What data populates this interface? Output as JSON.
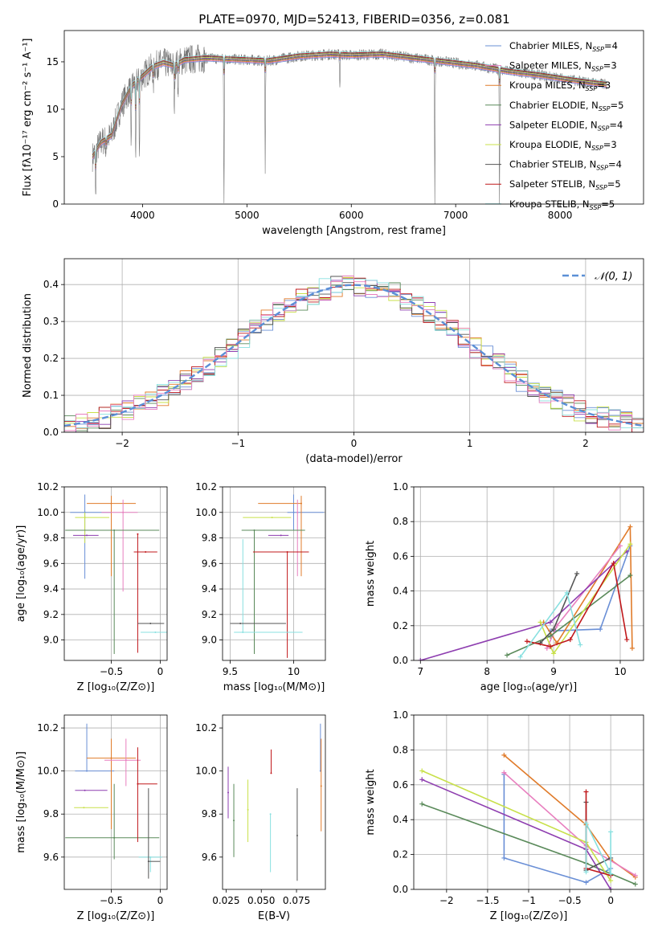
{
  "figure_title": "PLATE=0970, MJD=52413, FIBERID=0356, z=0.081",
  "colors": {
    "c1": "#6a8fd6",
    "c2": "#e07b2a",
    "c3": "#5a8a5a",
    "c4": "#8e3eb0",
    "c5": "#c8e04a",
    "c6": "#555555",
    "c7": "#c0181b",
    "c8": "#88e0e0",
    "c9": "#e87fbf",
    "normal": "#5b8fd6"
  },
  "chart_data": [
    {
      "id": "spectrum",
      "type": "line",
      "xlabel": "wavelength [Angstrom, rest frame]",
      "ylabel": "Flux [fλ10⁻¹⁷ erg cm⁻² s⁻¹ A⁻¹]",
      "xlim": [
        3250,
        8800
      ],
      "ylim": [
        0,
        18.3
      ],
      "xticks": [
        4000,
        5000,
        6000,
        7000,
        8000
      ],
      "yticks": [
        0,
        5,
        10,
        15
      ],
      "grid": false,
      "legend_position": "right",
      "legend": [
        {
          "label": "Chabrier MILES, N",
          "sub": "SSP",
          "suffix": "=4",
          "color": "c1"
        },
        {
          "label": "Salpeter MILES, N",
          "sub": "SSP",
          "suffix": "=3",
          "color": "c9"
        },
        {
          "label": "Kroupa MILES, N",
          "sub": "SSP",
          "suffix": "=3",
          "color": "c2"
        },
        {
          "label": "Chabrier ELODIE, N",
          "sub": "SSP",
          "suffix": "=5",
          "color": "c3"
        },
        {
          "label": "Salpeter ELODIE, N",
          "sub": "SSP",
          "suffix": "=4",
          "color": "c4"
        },
        {
          "label": "Kroupa ELODIE, N",
          "sub": "SSP",
          "suffix": "=3",
          "color": "c5"
        },
        {
          "label": "Chabrier STELIB, N",
          "sub": "SSP",
          "suffix": "=4",
          "color": "c6"
        },
        {
          "label": "Salpeter STELIB, N",
          "sub": "SSP",
          "suffix": "=5",
          "color": "c7"
        },
        {
          "label": "Kroupa STELIB, N",
          "sub": "SSP",
          "suffix": "=5",
          "color": "c8"
        }
      ],
      "continuum": [
        [
          3520,
          5.0
        ],
        [
          3600,
          6.5
        ],
        [
          3700,
          7.2
        ],
        [
          3800,
          10.5
        ],
        [
          3900,
          12.5
        ],
        [
          4000,
          13.5
        ],
        [
          4100,
          14.5
        ],
        [
          4200,
          14.9
        ],
        [
          4300,
          14.6
        ],
        [
          4400,
          15.2
        ],
        [
          4600,
          15.4
        ],
        [
          4800,
          15.3
        ],
        [
          5000,
          15.2
        ],
        [
          5200,
          15.1
        ],
        [
          5500,
          15.6
        ],
        [
          5800,
          15.8
        ],
        [
          6000,
          15.7
        ],
        [
          6300,
          15.8
        ],
        [
          6600,
          15.4
        ],
        [
          6900,
          15.0
        ],
        [
          7200,
          14.6
        ],
        [
          7500,
          14.0
        ],
        [
          7800,
          13.6
        ],
        [
          8100,
          13.1
        ],
        [
          8300,
          12.8
        ],
        [
          8450,
          12.6
        ]
      ],
      "absorption_lines": [
        {
          "x": 3550,
          "depth": 5.5
        },
        {
          "x": 3650,
          "depth": 2.0
        },
        {
          "x": 3890,
          "depth": 7.0
        },
        {
          "x": 3935,
          "depth": 9.5
        },
        {
          "x": 3970,
          "depth": 8.0
        },
        {
          "x": 4102,
          "depth": 3.0
        },
        {
          "x": 4305,
          "depth": 4.5
        },
        {
          "x": 4340,
          "depth": 3.0
        },
        {
          "x": 4780,
          "depth": 15.3
        },
        {
          "x": 5175,
          "depth": 11.5
        },
        {
          "x": 5890,
          "depth": 3.5
        },
        {
          "x": 6800,
          "depth": 15.0
        },
        {
          "x": 7420,
          "depth": 14.2
        }
      ]
    },
    {
      "id": "residuals",
      "type": "histogram",
      "xlabel": "(data-model)/error",
      "ylabel": "Normed distribution",
      "xlim": [
        -2.5,
        2.5
      ],
      "ylim": [
        0,
        0.47
      ],
      "xticks": [
        -2,
        -1,
        0,
        1,
        2
      ],
      "yticks": [
        0.0,
        0.1,
        0.2,
        0.3,
        0.4
      ],
      "grid": true,
      "legend_position": "top-right",
      "legend": [
        {
          "label": "𝒩(0, 1)",
          "color": "normal"
        }
      ],
      "normal_curve": {
        "mean": 0,
        "sigma": 1
      }
    },
    {
      "id": "age_vs_Z",
      "type": "errorbar",
      "xlabel": "Z [log₁₀(Z/Z⊙)]",
      "ylabel": "age  [log₁₀(age/yr)]",
      "xlim": [
        -0.98,
        0.07
      ],
      "ylim": [
        8.84,
        10.2
      ],
      "xticks": [
        -0.5,
        0.0
      ],
      "yticks": [
        9.0,
        9.2,
        9.4,
        9.6,
        9.8,
        10.0,
        10.2
      ],
      "grid": true,
      "points": [
        {
          "color": "c1",
          "x": -0.77,
          "xerr": [
            0.15,
            0.27
          ],
          "y": 10.0,
          "yerr": [
            0.52,
            0.14
          ]
        },
        {
          "color": "c2",
          "x": -0.5,
          "xerr": [
            0.25,
            0.25
          ],
          "y": 10.07,
          "yerr": [
            0.57,
            0.06
          ]
        },
        {
          "color": "c9",
          "x": -0.38,
          "xerr": [
            0.22,
            0.15
          ],
          "y": 10.0,
          "yerr": [
            0.62,
            0.1
          ]
        },
        {
          "color": "c5",
          "x": -0.77,
          "xerr": [
            0.1,
            0.25
          ],
          "y": 9.96,
          "yerr": [
            0.2,
            0.04
          ]
        },
        {
          "color": "c4",
          "x": -0.75,
          "xerr": [
            0.14,
            0.12
          ],
          "y": 9.82,
          "yerr": [
            0.0,
            0.0
          ]
        },
        {
          "color": "c3",
          "x": -0.47,
          "xerr": [
            0.5,
            0.46
          ],
          "y": 9.86,
          "yerr": [
            0.97,
            0.0
          ]
        },
        {
          "color": "c7",
          "x": -0.23,
          "xerr": [
            0.0,
            0.0
          ],
          "y": 9.83,
          "yerr": [
            0.93,
            0.0
          ]
        },
        {
          "color": "c7",
          "x": -0.15,
          "xerr": [
            0.12,
            0.12
          ],
          "y": 9.69,
          "yerr": [
            0.0,
            0.0
          ]
        },
        {
          "color": "c8",
          "x": -0.05,
          "xerr": [
            0.15,
            0.15
          ],
          "y": 9.06,
          "yerr": [
            0.0,
            0.0
          ]
        },
        {
          "color": "c6",
          "x": -0.1,
          "xerr": [
            0.13,
            0.14
          ],
          "y": 9.13,
          "yerr": [
            0.0,
            0.0
          ]
        }
      ]
    },
    {
      "id": "age_vs_mass",
      "type": "errorbar",
      "xlabel": "mass [log₁₀(M/M⊙)]",
      "ylabel": "",
      "xlim": [
        9.44,
        10.25
      ],
      "ylim": [
        8.84,
        10.2
      ],
      "xticks": [
        9.5,
        10.0
      ],
      "yticks": [
        9.0,
        9.2,
        9.4,
        9.6,
        9.8,
        10.0,
        10.2
      ],
      "grid": true,
      "points": [
        {
          "color": "c1",
          "x": 10.0,
          "xerr": [
            0.05,
            0.24
          ],
          "y": 10.0,
          "yerr": [
            0.14,
            0.14
          ]
        },
        {
          "color": "c2",
          "x": 10.06,
          "xerr": [
            0.34,
            0.0
          ],
          "y": 10.07,
          "yerr": [
            0.57,
            0.06
          ]
        },
        {
          "color": "c9",
          "x": 10.03,
          "xerr": [
            0.0,
            0.0
          ],
          "y": 10.0,
          "yerr": [
            0.5,
            0.1
          ]
        },
        {
          "color": "c5",
          "x": 9.83,
          "xerr": [
            0.23,
            0.15
          ],
          "y": 9.96,
          "yerr": [
            0.0,
            0.0
          ]
        },
        {
          "color": "c4",
          "x": 9.9,
          "xerr": [
            0.1,
            0.06
          ],
          "y": 9.82,
          "yerr": [
            0.0,
            0.0
          ]
        },
        {
          "color": "c3",
          "x": 9.69,
          "xerr": [
            0.1,
            0.4
          ],
          "y": 9.86,
          "yerr": [
            0.97,
            0.0
          ]
        },
        {
          "color": "c7",
          "x": 9.95,
          "xerr": [
            0.27,
            0.17
          ],
          "y": 9.69,
          "yerr": [
            0.83,
            0.0
          ]
        },
        {
          "color": "c8",
          "x": 9.6,
          "xerr": [
            0.07,
            0.47
          ],
          "y": 9.06,
          "yerr": [
            0.0,
            0.73
          ]
        },
        {
          "color": "c6",
          "x": 9.58,
          "xerr": [
            0.08,
            0.36
          ],
          "y": 9.13,
          "yerr": [
            0.0,
            0.0
          ]
        }
      ]
    },
    {
      "id": "massweight_vs_age",
      "type": "line",
      "xlabel": "age  [log₁₀(age/yr)]",
      "ylabel": "mass weight",
      "xlim": [
        6.9,
        10.35
      ],
      "ylim": [
        0,
        1.0
      ],
      "xticks": [
        7,
        8,
        9,
        10
      ],
      "yticks": [
        0.0,
        0.2,
        0.4,
        0.6,
        0.8,
        1.0
      ],
      "grid": true,
      "series": [
        {
          "color": "c1",
          "x": [
            8.95,
            9.7,
            10.15
          ],
          "y": [
            0.17,
            0.18,
            0.66
          ]
        },
        {
          "color": "c2",
          "x": [
            8.85,
            9.05,
            10.15,
            10.18
          ],
          "y": [
            0.22,
            0.1,
            0.77,
            0.07
          ]
        },
        {
          "color": "c9",
          "x": [
            8.9,
            9.05,
            10.0
          ],
          "y": [
            0.07,
            0.2,
            0.66
          ]
        },
        {
          "color": "c3",
          "x": [
            8.3,
            8.95,
            10.15
          ],
          "y": [
            0.03,
            0.14,
            0.49
          ]
        },
        {
          "color": "c4",
          "x": [
            7.0,
            8.95,
            10.1
          ],
          "y": [
            0.0,
            0.22,
            0.63
          ]
        },
        {
          "color": "c5",
          "x": [
            8.8,
            9.0,
            10.15
          ],
          "y": [
            0.22,
            0.04,
            0.67
          ]
        },
        {
          "color": "c6",
          "x": [
            8.8,
            9.0,
            9.35
          ],
          "y": [
            0.1,
            0.18,
            0.5
          ]
        },
        {
          "color": "c7",
          "x": [
            8.6,
            8.95,
            9.25,
            9.9,
            10.1
          ],
          "y": [
            0.11,
            0.08,
            0.12,
            0.56,
            0.12
          ]
        },
        {
          "color": "c8",
          "x": [
            8.5,
            9.2,
            9.4
          ],
          "y": [
            0.02,
            0.39,
            0.09
          ]
        }
      ]
    },
    {
      "id": "mass_vs_Z",
      "type": "errorbar",
      "xlabel": "Z [log₁₀(Z/Z⊙)]",
      "ylabel": "mass [log₁₀(M/M⊙)]",
      "xlim": [
        -0.98,
        0.07
      ],
      "ylim": [
        9.45,
        10.26
      ],
      "xticks": [
        -0.5,
        0.0
      ],
      "yticks": [
        9.6,
        9.8,
        10.0,
        10.2
      ],
      "grid": true,
      "points": [
        {
          "color": "c1",
          "x": -0.75,
          "xerr": [
            0.12,
            0.28
          ],
          "y": 10.0,
          "yerr": [
            0.0,
            0.22
          ]
        },
        {
          "color": "c2",
          "x": -0.5,
          "xerr": [
            0.25,
            0.25
          ],
          "y": 10.06,
          "yerr": [
            0.33,
            0.09
          ]
        },
        {
          "color": "c9",
          "x": -0.35,
          "xerr": [
            0.22,
            0.15
          ],
          "y": 10.05,
          "yerr": [
            0.12,
            0.1
          ]
        },
        {
          "color": "c5",
          "x": -0.78,
          "xerr": [
            0.1,
            0.25
          ],
          "y": 9.83,
          "yerr": [
            0.0,
            0.0
          ]
        },
        {
          "color": "c4",
          "x": -0.77,
          "xerr": [
            0.1,
            0.23
          ],
          "y": 9.91,
          "yerr": [
            0.0,
            0.0
          ]
        },
        {
          "color": "c3",
          "x": -0.47,
          "xerr": [
            0.5,
            0.46
          ],
          "y": 9.69,
          "yerr": [
            0.1,
            0.25
          ]
        },
        {
          "color": "c7",
          "x": -0.23,
          "xerr": [
            0.0,
            0.2
          ],
          "y": 9.94,
          "yerr": [
            0.27,
            0.17
          ]
        },
        {
          "color": "c8",
          "x": -0.1,
          "xerr": [
            0.12,
            0.12
          ],
          "y": 9.6,
          "yerr": [
            0.07,
            0.0
          ]
        },
        {
          "color": "c6",
          "x": -0.12,
          "xerr": [
            0.0,
            0.12
          ],
          "y": 9.58,
          "yerr": [
            0.08,
            0.34
          ]
        }
      ]
    },
    {
      "id": "mass_vs_EBV",
      "type": "errorbar",
      "xlabel": "E(B-V)",
      "ylabel": "",
      "xlim": [
        0.0225,
        0.0955
      ],
      "ylim": [
        9.45,
        10.26
      ],
      "xticks": [
        0.025,
        0.05,
        0.075
      ],
      "xticklabels": [
        "0.025",
        "0.050",
        "0.075"
      ],
      "yticks": [
        9.6,
        9.8,
        10.0,
        10.2
      ],
      "grid": false,
      "points": [
        {
          "color": "c4",
          "x": 0.0265,
          "y": 9.9,
          "yerr": [
            0.12,
            0.12
          ]
        },
        {
          "color": "c3",
          "x": 0.0305,
          "y": 9.77,
          "yerr": [
            0.17,
            0.17
          ]
        },
        {
          "color": "c5",
          "x": 0.0405,
          "y": 9.82,
          "yerr": [
            0.15,
            0.14
          ]
        },
        {
          "color": "c8",
          "x": 0.0565,
          "y": 9.8,
          "yerr": [
            0.27,
            0.0
          ]
        },
        {
          "color": "c7",
          "x": 0.057,
          "y": 9.99,
          "yerr": [
            0.0,
            0.11
          ]
        },
        {
          "color": "c6",
          "x": 0.0755,
          "y": 9.7,
          "yerr": [
            0.21,
            0.22
          ]
        },
        {
          "color": "c1",
          "x": 0.092,
          "y": 10.0,
          "yerr": [
            0.0,
            0.22
          ]
        },
        {
          "color": "c2",
          "x": 0.0925,
          "y": 9.93,
          "yerr": [
            0.21,
            0.22
          ]
        }
      ]
    },
    {
      "id": "massweight_vs_Z",
      "type": "line",
      "xlabel": "Z [log₁₀(Z/Z⊙)]",
      "ylabel": "mass weight",
      "xlim": [
        -2.4,
        0.4
      ],
      "ylim": [
        0,
        1.0
      ],
      "xticks": [
        -2.0,
        -1.5,
        -1.0,
        -0.5,
        0.0
      ],
      "yticks": [
        0.0,
        0.2,
        0.4,
        0.6,
        0.8,
        1.0
      ],
      "grid": true,
      "series": [
        {
          "color": "c1",
          "x": [
            -1.3,
            -1.3,
            -0.3,
            0.0
          ],
          "y": [
            0.66,
            0.18,
            0.04,
            0.12
          ]
        },
        {
          "color": "c2",
          "x": [
            -1.3,
            -0.3,
            0.0,
            0.3
          ],
          "y": [
            0.77,
            0.37,
            0.17,
            0.07
          ]
        },
        {
          "color": "c9",
          "x": [
            -1.3,
            -0.3,
            0.3
          ],
          "y": [
            0.67,
            0.25,
            0.08
          ]
        },
        {
          "color": "c3",
          "x": [
            -2.3,
            -0.3,
            0.3
          ],
          "y": [
            0.49,
            0.15,
            0.03
          ]
        },
        {
          "color": "c4",
          "x": [
            -2.3,
            -0.3,
            0.0
          ],
          "y": [
            0.63,
            0.23,
            0.0
          ]
        },
        {
          "color": "c5",
          "x": [
            -2.3,
            -0.3,
            0.0
          ],
          "y": [
            0.68,
            0.27,
            0.05
          ]
        },
        {
          "color": "c6",
          "x": [
            -0.3,
            -0.3,
            0.0
          ],
          "y": [
            0.5,
            0.11,
            0.18
          ]
        },
        {
          "color": "c7",
          "x": [
            -0.3,
            -0.3,
            0.0
          ],
          "y": [
            0.56,
            0.12,
            0.08
          ]
        },
        {
          "color": "c8",
          "x": [
            -0.3,
            -0.3,
            0.0,
            0.0
          ],
          "y": [
            0.1,
            0.38,
            0.09,
            0.33
          ]
        }
      ]
    }
  ]
}
